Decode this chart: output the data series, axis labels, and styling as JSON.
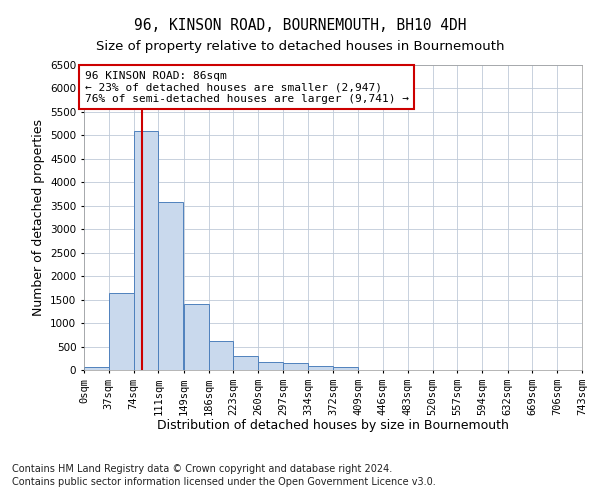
{
  "title1": "96, KINSON ROAD, BOURNEMOUTH, BH10 4DH",
  "title2": "Size of property relative to detached houses in Bournemouth",
  "xlabel": "Distribution of detached houses by size in Bournemouth",
  "ylabel": "Number of detached properties",
  "footnote1": "Contains HM Land Registry data © Crown copyright and database right 2024.",
  "footnote2": "Contains public sector information licensed under the Open Government Licence v3.0.",
  "annotation_title": "96 KINSON ROAD: 86sqm",
  "annotation_line1": "← 23% of detached houses are smaller (2,947)",
  "annotation_line2": "76% of semi-detached houses are larger (9,741) →",
  "property_size_sqm": 86,
  "bin_edges": [
    0,
    37,
    74,
    111,
    149,
    186,
    223,
    260,
    297,
    334,
    372,
    409,
    446,
    483,
    520,
    557,
    594,
    632,
    669,
    706,
    743
  ],
  "bar_values": [
    65,
    1650,
    5100,
    3580,
    1400,
    620,
    295,
    160,
    140,
    90,
    60,
    0,
    0,
    0,
    0,
    0,
    0,
    0,
    0,
    0
  ],
  "bar_color": "#c9d9ed",
  "bar_edge_color": "#4f81bd",
  "vline_color": "#cc0000",
  "ylim_max": 6500,
  "background_color": "#ffffff",
  "grid_color": "#bfcad8",
  "annotation_box_edgecolor": "#cc0000",
  "title1_fontsize": 10.5,
  "title2_fontsize": 9.5,
  "ylabel_fontsize": 9,
  "xlabel_fontsize": 9,
  "tick_fontsize": 7.5,
  "annotation_fontsize": 8,
  "footnote_fontsize": 7
}
